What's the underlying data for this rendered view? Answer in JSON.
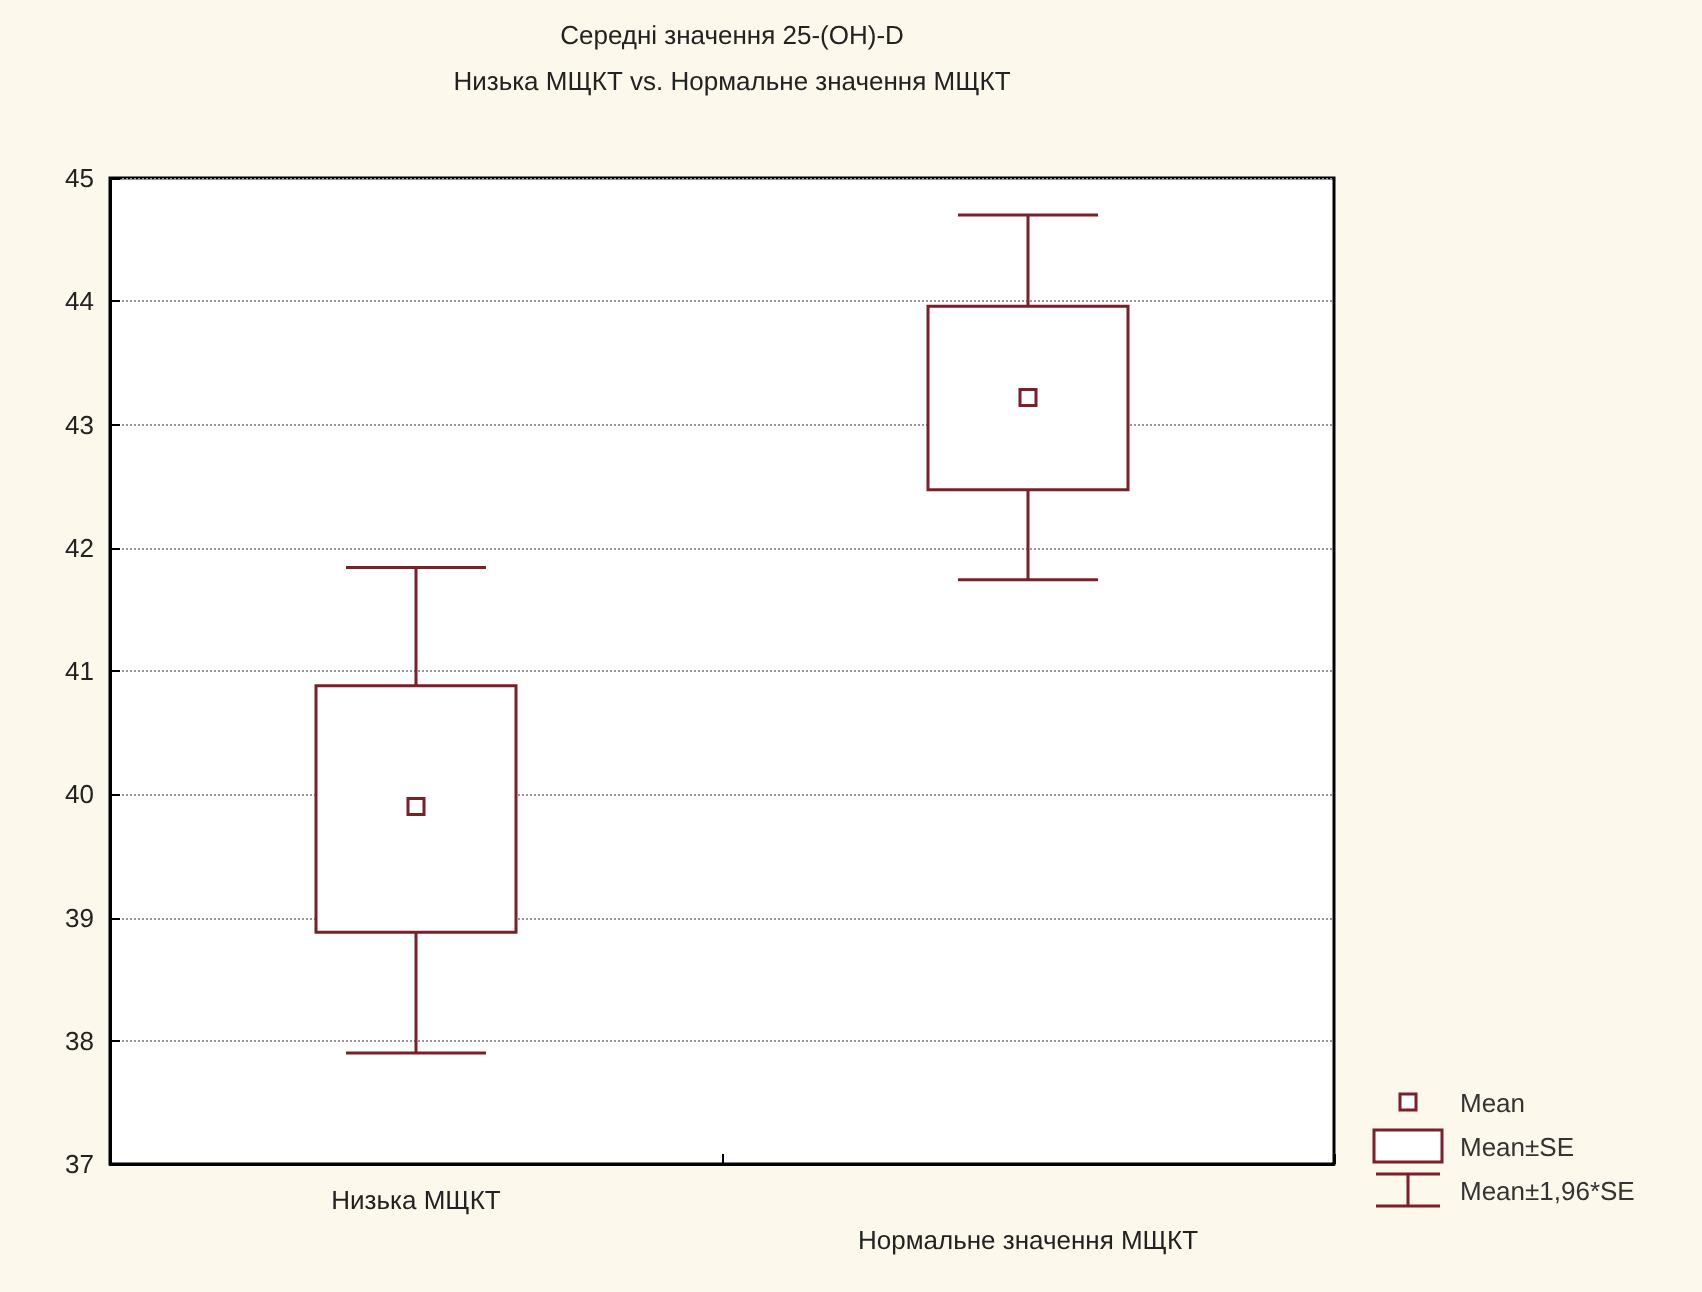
{
  "chart_data": {
    "type": "box",
    "title": "Середні значення 25-(OH)-D",
    "subtitle": "Низька МЩКТ vs. Нормальне значення МЩКТ",
    "categories": [
      "Низька МЩКТ",
      "Нормальне значення МЩКТ"
    ],
    "series": [
      {
        "color": "#7b1f2a",
        "boxes": [
          {
            "low": 37.9,
            "q1": 38.88,
            "mean": 39.9,
            "q3": 40.88,
            "high": 41.84
          },
          {
            "low": 41.74,
            "q1": 42.47,
            "mean": 43.22,
            "q3": 43.96,
            "high": 44.7
          }
        ]
      }
    ],
    "ylim": [
      37,
      45
    ],
    "yticks": [
      37,
      38,
      39,
      40,
      41,
      42,
      43,
      44,
      45
    ],
    "grid": "y",
    "marker": "square",
    "annotations": [
      "Mean",
      "Mean±SE",
      "Mean±1,96*SE"
    ]
  }
}
